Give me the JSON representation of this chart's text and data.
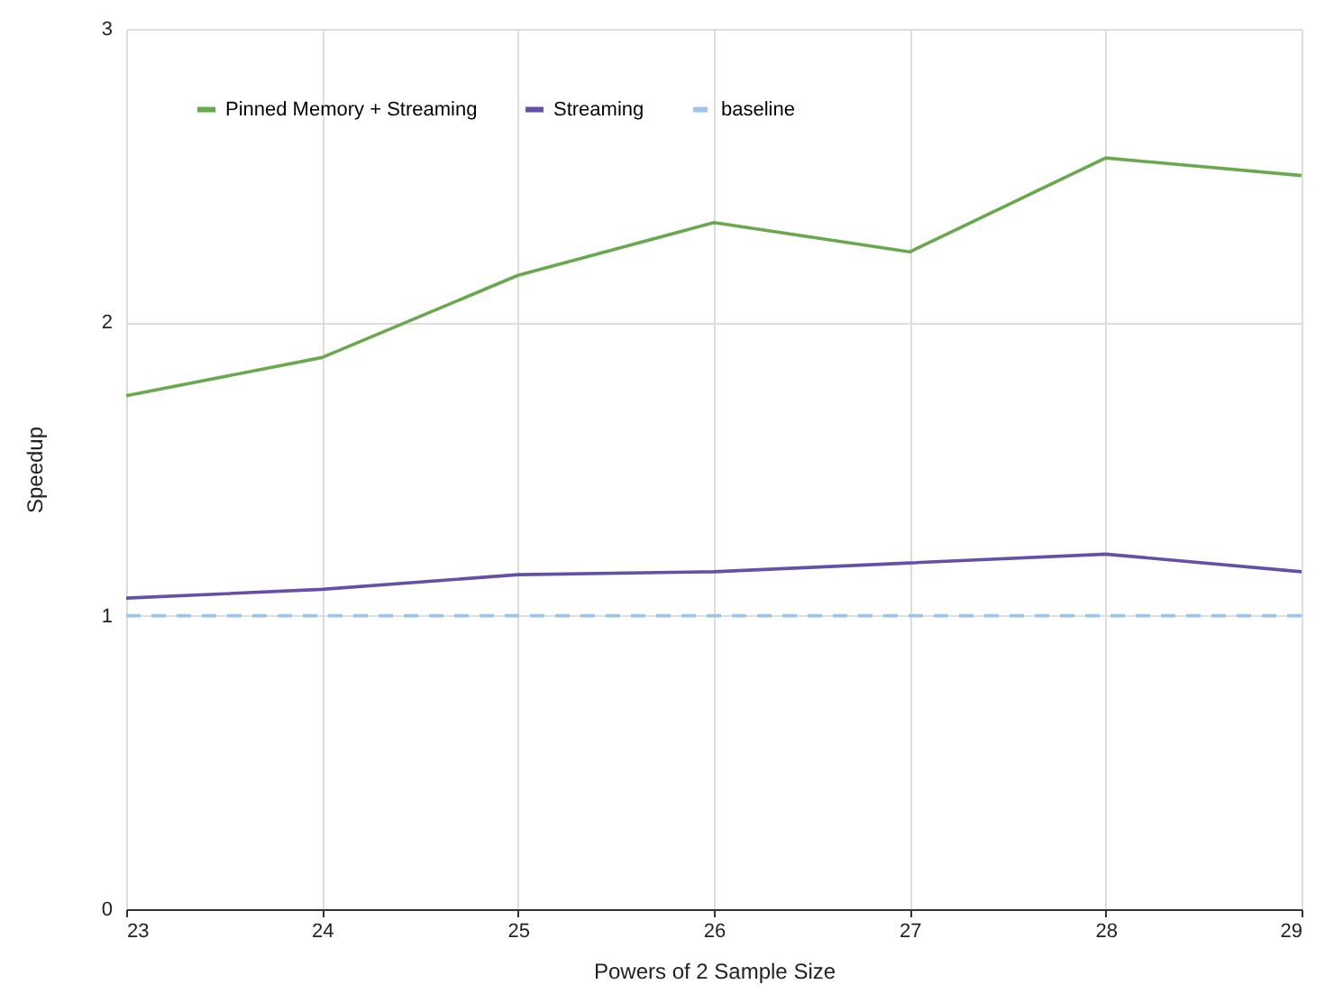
{
  "chart_data": {
    "type": "line",
    "xlabel": "Powers of 2 Sample Size",
    "ylabel": "Speedup",
    "x": [
      23,
      24,
      25,
      26,
      27,
      28,
      29
    ],
    "xlim": [
      23,
      29
    ],
    "xticks": [
      23,
      24,
      25,
      26,
      27,
      28,
      29
    ],
    "ylim": [
      0,
      3
    ],
    "yticks": [
      0,
      1,
      2,
      3
    ],
    "grid": true,
    "legend": "top left",
    "marker": "none",
    "series": [
      {
        "name": "Pinned Memory + Streaming",
        "color": "#6aa84f",
        "line_style": "solid",
        "values": [
          1.75,
          1.88,
          2.16,
          2.34,
          2.24,
          2.56,
          2.5
        ]
      },
      {
        "name": "Streaming",
        "color": "#674ea7",
        "line_style": "solid",
        "values": [
          1.06,
          1.09,
          1.14,
          1.15,
          1.18,
          1.21,
          1.15
        ]
      },
      {
        "name": "baseline",
        "color": "#9fc5e8",
        "line_style": "dashed",
        "values": [
          1,
          1,
          1,
          1,
          1,
          1,
          1
        ]
      }
    ]
  }
}
